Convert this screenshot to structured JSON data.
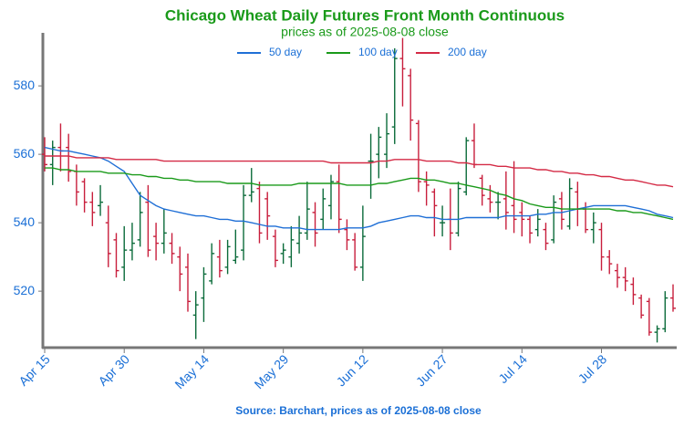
{
  "chart_data": {
    "type": "ohlc",
    "title": "Chicago Wheat Daily Futures Front Month Continuous",
    "subtitle": "prices as of 2025-08-08 close",
    "source": "Source: Barchart, prices as of 2025-08-08 close",
    "categories": [
      "Apr 15",
      "Apr 16",
      "Apr 17",
      "Apr 21",
      "Apr 22",
      "Apr 23",
      "Apr 24",
      "Apr 25",
      "Apr 28",
      "Apr 29",
      "Apr 30",
      "May 1",
      "May 2",
      "May 5",
      "May 6",
      "May 7",
      "May 8",
      "May 9",
      "May 12",
      "May 13",
      "May 14",
      "May 15",
      "May 16",
      "May 19",
      "May 20",
      "May 21",
      "May 22",
      "May 23",
      "May 27",
      "May 28",
      "May 29",
      "May 30",
      "Jun 2",
      "Jun 3",
      "Jun 4",
      "Jun 5",
      "Jun 6",
      "Jun 9",
      "Jun 10",
      "Jun 11",
      "Jun 12",
      "Jun 13",
      "Jun 16",
      "Jun 17",
      "Jun 18",
      "Jun 20",
      "Jun 23",
      "Jun 24",
      "Jun 25",
      "Jun 26",
      "Jun 27",
      "Jun 30",
      "Jul 1",
      "Jul 2",
      "Jul 3",
      "Jul 7",
      "Jul 8",
      "Jul 9",
      "Jul 10",
      "Jul 11",
      "Jul 14",
      "Jul 15",
      "Jul 16",
      "Jul 17",
      "Jul 18",
      "Jul 21",
      "Jul 22",
      "Jul 23",
      "Jul 24",
      "Jul 25",
      "Jul 28",
      "Jul 29",
      "Jul 30",
      "Jul 31",
      "Aug 1",
      "Aug 4",
      "Aug 5",
      "Aug 6",
      "Aug 7",
      "Aug 8"
    ],
    "xticks": [
      "Apr 15",
      "Apr 30",
      "May 14",
      "May 29",
      "Jun 12",
      "Jun 27",
      "Jul 14",
      "Jul 28"
    ],
    "open": [
      560,
      557,
      562,
      562,
      555,
      552,
      546,
      545,
      540,
      535,
      527,
      532,
      535,
      546,
      536,
      534,
      534,
      530,
      527,
      513,
      518,
      523,
      530,
      527,
      529,
      532,
      548,
      550,
      547,
      536,
      531,
      530,
      534,
      537,
      543,
      541,
      545,
      552,
      538,
      535,
      527,
      558,
      560,
      560,
      568,
      588,
      583,
      569,
      552,
      549,
      540,
      541,
      537,
      549,
      564,
      553,
      547,
      546,
      547,
      545,
      543,
      541,
      538,
      538,
      535,
      547,
      539,
      549,
      544,
      538,
      538,
      530,
      526,
      524,
      522,
      518,
      517,
      508,
      509,
      518
    ],
    "high": [
      565,
      564,
      569,
      566,
      557,
      553,
      549,
      551,
      545,
      537,
      539,
      540,
      549,
      551,
      540,
      544,
      537,
      533,
      531,
      520,
      527,
      534,
      535,
      535,
      538,
      551,
      556,
      552,
      549,
      538,
      534,
      539,
      542,
      552,
      546,
      550,
      554,
      557,
      541,
      537,
      545,
      566,
      568,
      572,
      591,
      594,
      585,
      570,
      555,
      550,
      545,
      550,
      552,
      565,
      569,
      554,
      551,
      549,
      555,
      558,
      546,
      542,
      544,
      540,
      548,
      549,
      553,
      552,
      546,
      543,
      540,
      532,
      528,
      527,
      524,
      519,
      518,
      510,
      520,
      522
    ],
    "low": [
      555,
      551,
      555,
      552,
      545,
      543,
      539,
      542,
      527,
      524,
      523,
      529,
      533,
      530,
      529,
      531,
      528,
      520,
      514,
      506,
      511,
      522,
      524,
      525,
      528,
      529,
      546,
      534,
      535,
      527,
      528,
      527,
      531,
      535,
      533,
      538,
      541,
      537,
      532,
      526,
      523,
      547,
      553,
      556,
      563,
      574,
      564,
      549,
      545,
      536,
      536,
      532,
      536,
      548,
      556,
      545,
      543,
      541,
      538,
      537,
      536,
      534,
      536,
      532,
      534,
      538,
      538,
      539,
      537,
      534,
      526,
      525,
      521,
      520,
      516,
      512,
      507,
      505,
      508,
      514
    ],
    "close": [
      557,
      562,
      561,
      555,
      549,
      546,
      543,
      546,
      531,
      526,
      532,
      534,
      543,
      532,
      534,
      537,
      531,
      525,
      517,
      516,
      525,
      531,
      526,
      533,
      530,
      548,
      549,
      537,
      542,
      529,
      532,
      535,
      537,
      544,
      537,
      547,
      552,
      541,
      535,
      527,
      536,
      558,
      565,
      566,
      588,
      585,
      570,
      552,
      551,
      545,
      540,
      537,
      550,
      564,
      557,
      548,
      546,
      546,
      543,
      541,
      541,
      537,
      541,
      534,
      546,
      541,
      550,
      544,
      538,
      540,
      530,
      528,
      524,
      523,
      519,
      513,
      508,
      509,
      518,
      515
    ],
    "up_color": "#0b6b3a",
    "down_color": "#c81e3c",
    "series": [
      {
        "name": "50 day",
        "color": "#1f6fd6",
        "values": [
          562,
          561.5,
          561,
          561,
          560.5,
          560,
          559.5,
          559,
          558,
          556.5,
          555,
          551.5,
          548,
          546.5,
          545,
          544,
          543.5,
          543,
          542.5,
          542,
          542,
          541.5,
          541,
          541,
          540.5,
          540.5,
          540,
          539.5,
          539,
          539,
          538.5,
          538.5,
          538.5,
          538,
          538,
          538,
          538,
          538,
          538.5,
          538.5,
          538.5,
          539,
          540,
          540.5,
          541,
          541.5,
          542,
          542,
          541.5,
          541.5,
          541,
          541,
          541,
          541.5,
          541.5,
          541.5,
          541.5,
          541.5,
          542,
          542,
          542,
          542,
          542.5,
          542.5,
          543,
          543,
          543.5,
          544,
          544.5,
          545,
          545,
          545,
          545,
          545,
          544.5,
          544,
          543.5,
          542.5,
          542,
          541.5
        ]
      },
      {
        "name": "100 day",
        "color": "#1a9a1a",
        "values": [
          556,
          556,
          555.5,
          555.5,
          555,
          555,
          555,
          555,
          554.5,
          554.5,
          554.5,
          554,
          554,
          553.5,
          553.5,
          553,
          553,
          552.5,
          552.5,
          552,
          552,
          552,
          552,
          551.5,
          551.5,
          551.5,
          551.5,
          551,
          551,
          551,
          551,
          551,
          551.5,
          551.5,
          551.5,
          551.5,
          551.5,
          551.5,
          551,
          551,
          551,
          551,
          551.5,
          551.5,
          552,
          552.5,
          553,
          553,
          552.5,
          552.5,
          552,
          551.5,
          551.5,
          551,
          550.5,
          550,
          549.5,
          548.5,
          548,
          547,
          546.5,
          545.5,
          545,
          544.5,
          544.5,
          544,
          544,
          544,
          544,
          544,
          544,
          544,
          543.5,
          543.5,
          543,
          543,
          542.5,
          542,
          541.5,
          541
        ]
      },
      {
        "name": "200 day",
        "color": "#d42a45",
        "values": [
          559.5,
          559.5,
          559.5,
          559.5,
          559,
          559,
          559,
          559,
          559,
          558.5,
          558.5,
          558.5,
          558.5,
          558.5,
          558.5,
          558,
          558,
          558,
          558,
          558,
          558,
          558,
          558,
          558,
          558,
          558,
          558,
          558,
          558,
          558,
          558,
          558,
          558,
          558,
          558,
          558,
          557.5,
          557.5,
          557.5,
          557.5,
          557.5,
          557.5,
          558,
          558,
          558.5,
          558.5,
          558.5,
          558.5,
          558,
          558,
          558,
          558,
          557.5,
          557.5,
          557,
          557,
          557,
          556.5,
          556.5,
          556,
          556,
          556,
          555.5,
          555.5,
          555,
          555,
          554.5,
          554.5,
          554,
          554,
          553.5,
          553.5,
          553,
          552.5,
          552.5,
          552,
          551.5,
          551,
          551,
          550.5
        ]
      }
    ],
    "ylim": [
      503.5,
      595.5
    ],
    "yticks": [
      520,
      540,
      560,
      580
    ],
    "legend": "top"
  }
}
